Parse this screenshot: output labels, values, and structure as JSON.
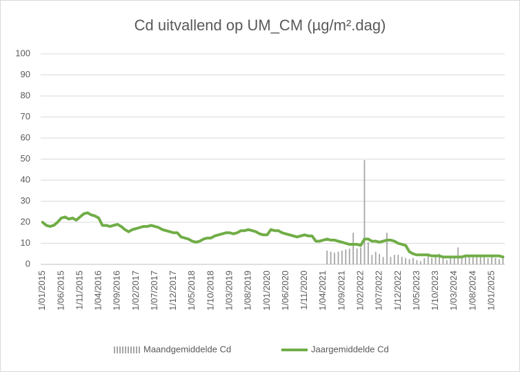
{
  "chart_data": {
    "type": "combo",
    "title": "Cd uitvallend op UM_CM (µg/m².dag)",
    "categories": [
      "1/01/2015",
      null,
      null,
      null,
      null,
      "1/06/2015",
      null,
      null,
      null,
      null,
      "1/11/2015",
      null,
      null,
      null,
      null,
      "1/04/2016",
      null,
      null,
      null,
      null,
      "1/09/2016",
      null,
      null,
      null,
      null,
      "1/02/2017",
      null,
      null,
      null,
      null,
      "1/07/2017",
      null,
      null,
      null,
      null,
      "1/12/2017",
      null,
      null,
      null,
      null,
      "1/05/2018",
      null,
      null,
      null,
      null,
      "1/10/2018",
      null,
      null,
      null,
      null,
      "1/03/2019",
      null,
      null,
      null,
      null,
      "1/08/2019",
      null,
      null,
      null,
      null,
      "1/01/2020",
      null,
      null,
      null,
      null,
      "1/06/2020",
      null,
      null,
      null,
      null,
      "1/11/2020",
      null,
      null,
      null,
      null,
      "1/04/2021",
      null,
      null,
      null,
      null,
      "1/09/2021",
      null,
      null,
      null,
      null,
      "1/02/2022",
      null,
      null,
      null,
      null,
      "1/07/2022",
      null,
      null,
      null,
      null,
      "1/12/2022",
      null,
      null,
      null,
      null,
      "1/05/2023",
      null,
      null,
      null,
      null,
      "1/10/2023",
      null,
      null,
      null,
      null,
      "1/03/2024",
      null,
      null,
      null,
      null,
      "1/08/2024",
      null,
      null,
      null,
      null,
      "1/01/2025",
      null,
      null,
      null
    ],
    "series": [
      {
        "name": "Maandgemiddelde Cd",
        "type": "bar",
        "color": "#a5a5a5",
        "values": [
          null,
          null,
          null,
          null,
          null,
          null,
          null,
          null,
          null,
          null,
          null,
          null,
          null,
          null,
          null,
          null,
          null,
          null,
          null,
          null,
          null,
          null,
          null,
          null,
          null,
          null,
          null,
          null,
          null,
          null,
          null,
          null,
          null,
          null,
          null,
          null,
          null,
          null,
          null,
          null,
          null,
          null,
          null,
          null,
          null,
          null,
          null,
          null,
          null,
          null,
          null,
          null,
          null,
          null,
          null,
          null,
          null,
          null,
          null,
          null,
          null,
          null,
          null,
          null,
          null,
          null,
          null,
          null,
          null,
          null,
          null,
          null,
          null,
          null,
          null,
          null,
          6.5,
          6,
          5.5,
          6,
          6.5,
          7,
          7.5,
          15,
          7.5,
          8,
          49.5,
          10.5,
          4.5,
          6,
          5,
          3.5,
          15,
          3.5,
          4.5,
          4.5,
          3.5,
          3,
          2.5,
          3,
          2,
          1.5,
          3,
          4,
          3,
          3.5,
          5,
          3.5,
          2,
          3,
          4,
          8,
          3,
          4.5,
          3.5,
          4,
          4.5,
          4,
          3.5,
          3,
          4,
          3,
          2.5,
          3.5
        ]
      },
      {
        "name": "Jaargemiddelde Cd",
        "type": "line",
        "color": "#70ad47",
        "values": [
          20,
          18.5,
          18,
          18.5,
          20,
          22,
          22.5,
          21.5,
          22,
          21,
          22.5,
          24,
          24.5,
          23.5,
          23,
          22,
          18.5,
          18.5,
          18,
          18.5,
          19,
          18,
          16.5,
          15.5,
          16.5,
          17,
          17.5,
          18,
          18,
          18.5,
          18,
          17.5,
          16.5,
          16,
          15.5,
          15,
          15,
          13,
          12.5,
          12,
          11,
          10.5,
          11,
          12,
          12.5,
          12.5,
          13.5,
          14,
          14.5,
          15,
          15,
          14.5,
          15,
          16,
          16,
          16.5,
          16,
          15.5,
          14.5,
          14,
          14,
          16.5,
          16,
          16,
          15,
          14.5,
          14,
          13.5,
          13,
          13.5,
          14,
          13.5,
          13.5,
          11,
          11,
          11.5,
          12,
          11.5,
          11.5,
          11,
          10.5,
          10,
          9.5,
          9.5,
          9.5,
          9,
          12,
          12,
          11,
          11,
          10.5,
          11,
          11.5,
          11.5,
          11,
          10,
          9.5,
          9,
          6,
          5,
          4.5,
          4.5,
          4.5,
          4.5,
          4,
          4,
          4,
          3.5,
          3.5,
          3.5,
          3.5,
          3.5,
          3.5,
          4,
          4,
          4,
          4,
          4,
          4,
          4,
          4,
          4,
          4,
          3.5
        ]
      }
    ],
    "ylim": [
      0,
      100
    ],
    "yticks": [
      0,
      10,
      20,
      30,
      40,
      50,
      60,
      70,
      80,
      90,
      100
    ],
    "grid": true
  }
}
